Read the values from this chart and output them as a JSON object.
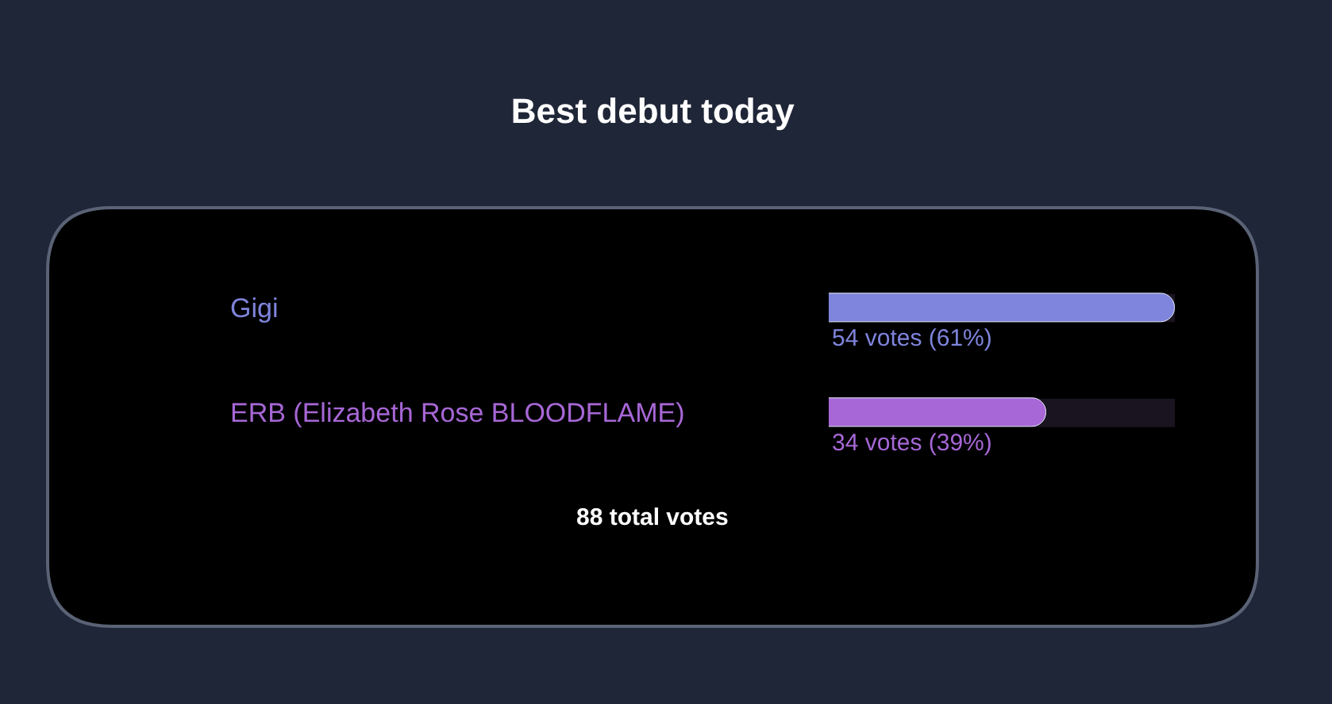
{
  "chart_data": {
    "type": "bar",
    "orientation": "horizontal",
    "title": "Best debut today",
    "categories": [
      "Gigi",
      "ERB (Elizabeth Rose BLOODFLAME)"
    ],
    "values": [
      54,
      34
    ],
    "colors": [
      "#7f84dc",
      "#a767d6"
    ],
    "value_labels": [
      "54 votes (61%)",
      "34 votes (39%)"
    ],
    "annotations": [
      "88 total votes"
    ],
    "tick_labels": false,
    "grid": false,
    "legend": false
  }
}
